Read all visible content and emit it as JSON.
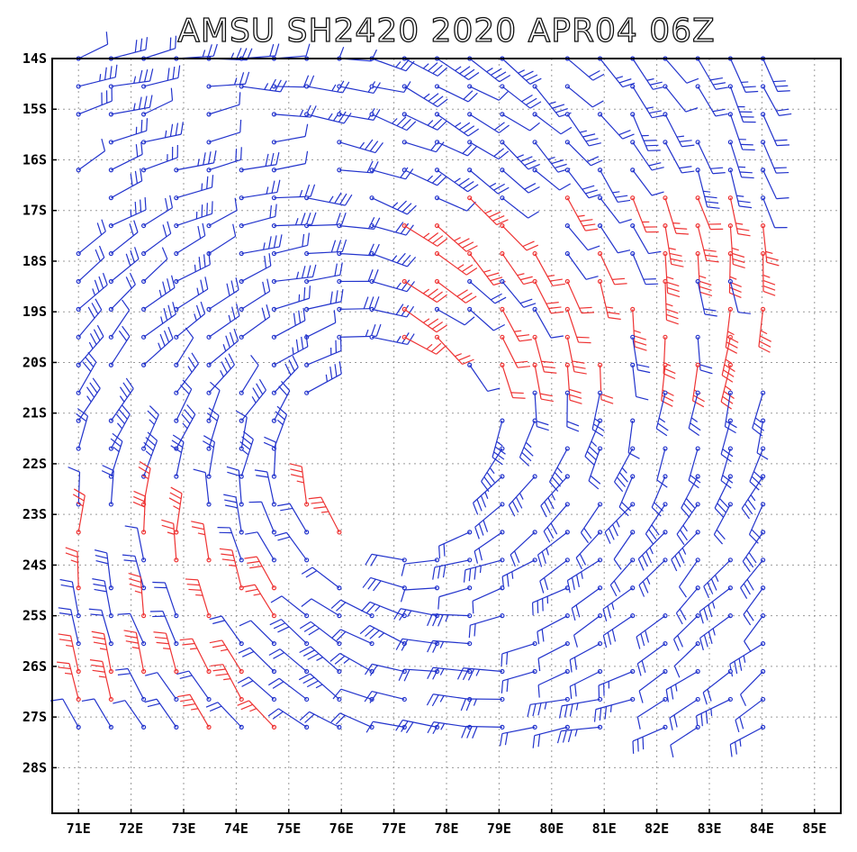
{
  "chart_data": {
    "type": "wind-barb",
    "title": "AMSU SH2420 2020 APR04 06Z",
    "x_ticks": [
      "71E",
      "72E",
      "73E",
      "74E",
      "75E",
      "76E",
      "77E",
      "78E",
      "79E",
      "80E",
      "81E",
      "82E",
      "83E",
      "84E",
      "85E"
    ],
    "y_ticks": [
      "14S",
      "15S",
      "16S",
      "17S",
      "18S",
      "19S",
      "20S",
      "21S",
      "22S",
      "23S",
      "24S",
      "25S",
      "26S",
      "27S",
      "28S"
    ],
    "xlim": [
      70.5,
      85.5
    ],
    "ylim": [
      -14.0,
      -28.9
    ],
    "grid": true,
    "storm_center": {
      "lon": 77.0,
      "lat": -21.6
    },
    "colors": {
      "normal": "#2233cc",
      "strong": "#ee3333",
      "grid": "#9a9a9a"
    },
    "series": [
      {
        "name": "barbs (blue)",
        "color": "#2233cc"
      },
      {
        "name": "barbs (red)",
        "color": "#ee3333"
      }
    ]
  }
}
